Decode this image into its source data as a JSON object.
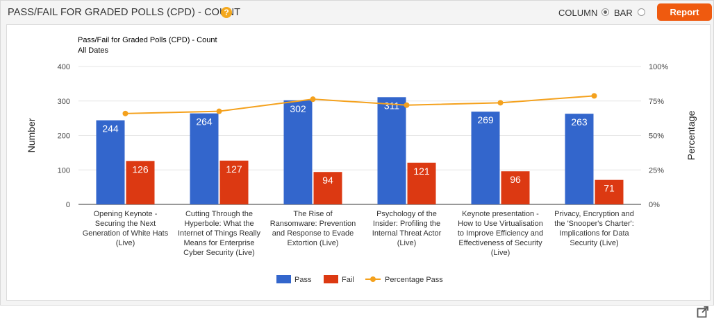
{
  "header": {
    "title": "PASS/FAIL FOR GRADED POLLS (CPD) - COUNT",
    "help_icon": "?",
    "column_label": "COLUMN",
    "bar_label": "BAR",
    "selected_view": "COLUMN",
    "report_button": "Report"
  },
  "chart_data": {
    "type": "bar",
    "title": "Pass/Fail for Graded Polls (CPD) - Count",
    "subtitle": "All Dates",
    "ylabel": "Number",
    "y2label": "Percentage",
    "ylim": [
      0,
      400
    ],
    "yticks": [
      "0",
      "100",
      "200",
      "300",
      "400"
    ],
    "y2lim": [
      0,
      100
    ],
    "y2ticks": [
      "0%",
      "25%",
      "50%",
      "75%",
      "100%"
    ],
    "grid": true,
    "legend": "bottom",
    "categories": [
      [
        "Opening Keynote -",
        "Securing the Next",
        "Generation of White Hats",
        "(Live)"
      ],
      [
        "Cutting Through the",
        "Hyperbole: What the",
        "Internet of Things Really",
        "Means for Enterprise",
        "Cyber Security (Live)"
      ],
      [
        "The Rise of",
        "Ransomware: Prevention",
        "and Response to Evade",
        "Extortion (Live)"
      ],
      [
        "Psychology of the",
        "Insider: Profiling the",
        "Internal Threat Actor",
        "(Live)"
      ],
      [
        "Keynote presentation -",
        "How to Use Virtualisation",
        "to Improve Efficiency and",
        "Effectiveness of Security",
        "(Live)"
      ],
      [
        "Privacy, Encryption and",
        "the 'Snooper's Charter':",
        "Implications for Data",
        "Security (Live)"
      ]
    ],
    "series": [
      {
        "name": "Pass",
        "type": "bar",
        "color": "#3366cc",
        "values": [
          244,
          264,
          302,
          311,
          269,
          263
        ]
      },
      {
        "name": "Fail",
        "type": "bar",
        "color": "#dc3912",
        "values": [
          126,
          127,
          94,
          121,
          96,
          71
        ]
      },
      {
        "name": "Percentage Pass",
        "type": "line",
        "axis": "right",
        "color": "#f4a11d",
        "values": [
          65.9,
          67.5,
          76.3,
          72.0,
          73.7,
          78.7
        ]
      }
    ]
  },
  "icons": {
    "help": "help-icon",
    "export": "export-icon"
  }
}
